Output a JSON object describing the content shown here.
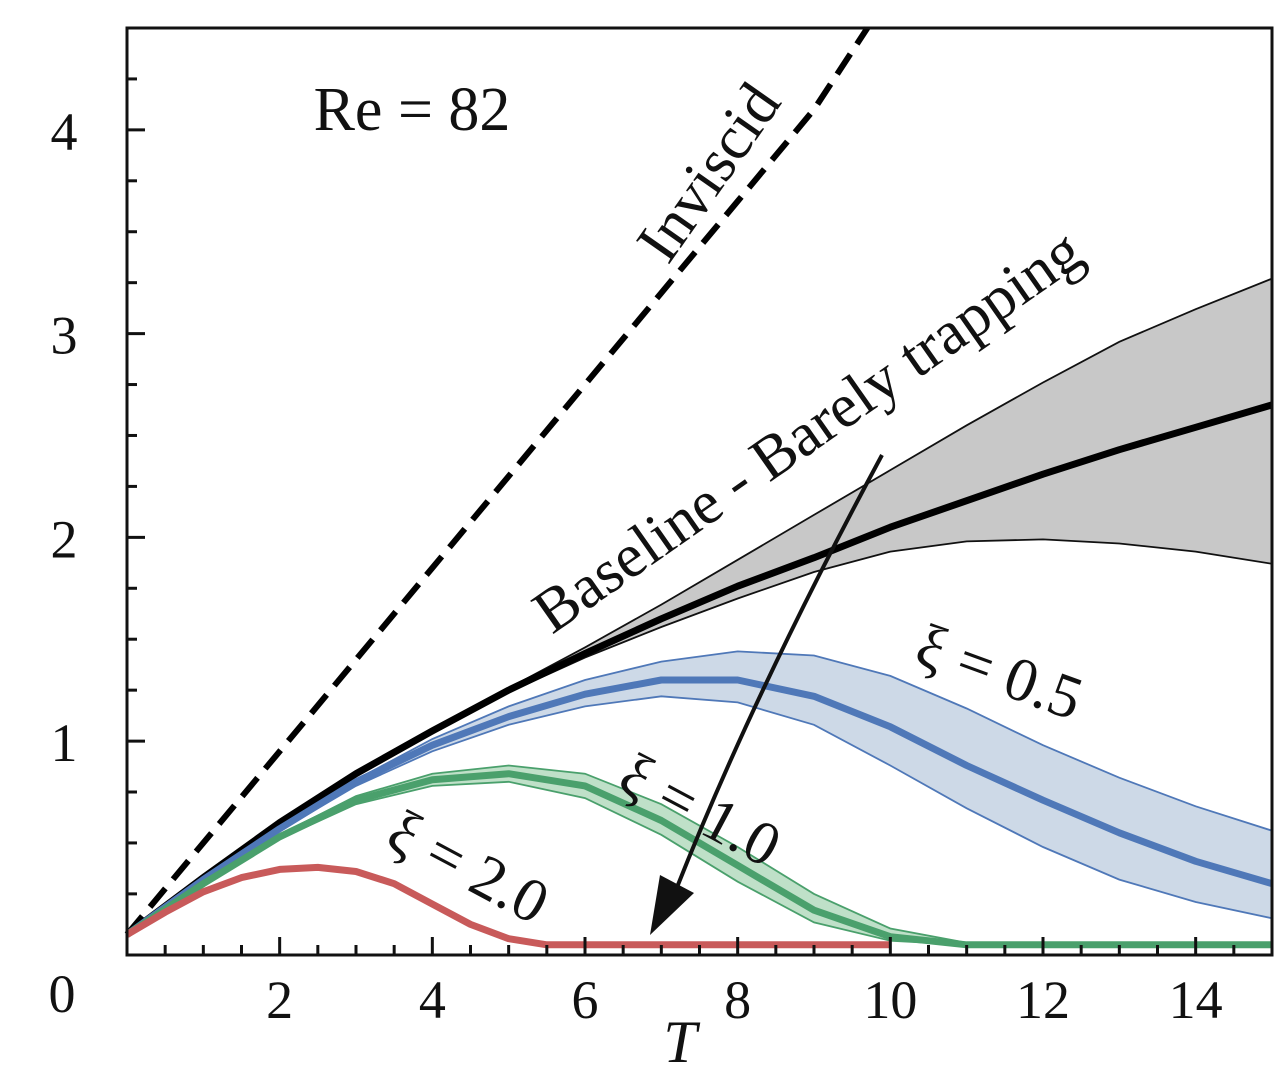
{
  "chart_data": {
    "type": "line",
    "annotation_re": "Re = 82",
    "xlabel": "T",
    "ylabel": "",
    "xlim": [
      0,
      15
    ],
    "ylim": [
      -0.05,
      4.5
    ],
    "x_ticks": [
      2,
      4,
      6,
      8,
      10,
      12,
      14
    ],
    "x_tick_labels": [
      "2",
      "4",
      "6",
      "8",
      "10",
      "12",
      "14"
    ],
    "y_ticks": [
      1,
      2,
      3,
      4
    ],
    "y_tick_labels": [
      "1",
      "2",
      "3",
      "4"
    ],
    "origin_label": "0",
    "grid": false,
    "series": [
      {
        "name": "Inviscid",
        "color": "#000000",
        "style": "dashed",
        "x": [
          0,
          1,
          2,
          3,
          4,
          5,
          6,
          7,
          8,
          9,
          9.7
        ],
        "y": [
          0.05,
          0.5,
          0.95,
          1.4,
          1.85,
          2.3,
          2.75,
          3.2,
          3.65,
          4.1,
          4.5
        ]
      },
      {
        "name": "Baseline - Barely trapping",
        "color": "#000000",
        "band_color": "#c8c8c8",
        "x": [
          0,
          1,
          2,
          3,
          4,
          5,
          6,
          7,
          8,
          9,
          10,
          11,
          12,
          13,
          14,
          15
        ],
        "y": [
          0.05,
          0.33,
          0.6,
          0.84,
          1.05,
          1.25,
          1.43,
          1.6,
          1.76,
          1.9,
          2.05,
          2.18,
          2.31,
          2.43,
          2.54,
          2.65
        ],
        "upper": [
          0.05,
          0.33,
          0.6,
          0.84,
          1.05,
          1.26,
          1.46,
          1.67,
          1.89,
          2.11,
          2.33,
          2.55,
          2.76,
          2.96,
          3.12,
          3.27
        ],
        "lower": [
          0.05,
          0.33,
          0.6,
          0.84,
          1.05,
          1.24,
          1.41,
          1.56,
          1.7,
          1.83,
          1.93,
          1.98,
          1.99,
          1.97,
          1.93,
          1.87
        ]
      },
      {
        "name": "ξ = 0.5",
        "color": "#4f78b8",
        "band_color": "#cdd9e7",
        "x": [
          0,
          1,
          2,
          3,
          4,
          5,
          6,
          7,
          8,
          9,
          10,
          11,
          12,
          13,
          14,
          15
        ],
        "y": [
          0.05,
          0.32,
          0.57,
          0.8,
          0.98,
          1.12,
          1.23,
          1.3,
          1.3,
          1.22,
          1.07,
          0.88,
          0.71,
          0.55,
          0.41,
          0.3
        ],
        "upper": [
          0.05,
          0.32,
          0.58,
          0.81,
          1.01,
          1.17,
          1.3,
          1.39,
          1.44,
          1.42,
          1.32,
          1.16,
          0.98,
          0.82,
          0.68,
          0.56
        ],
        "lower": [
          0.05,
          0.32,
          0.56,
          0.78,
          0.95,
          1.08,
          1.17,
          1.22,
          1.19,
          1.08,
          0.88,
          0.67,
          0.48,
          0.32,
          0.21,
          0.13
        ]
      },
      {
        "name": "ξ = 1.0",
        "color": "#4aa06c",
        "band_color": "#bfe0c8",
        "x": [
          0,
          1,
          2,
          3,
          4,
          5,
          6,
          7,
          8,
          9,
          10,
          11,
          12,
          13,
          14,
          15
        ],
        "y": [
          0.05,
          0.3,
          0.53,
          0.71,
          0.81,
          0.84,
          0.78,
          0.61,
          0.39,
          0.17,
          0.04,
          0.0,
          0.0,
          0.0,
          0.0,
          0.0
        ],
        "upper": [
          0.05,
          0.3,
          0.54,
          0.73,
          0.84,
          0.88,
          0.84,
          0.69,
          0.48,
          0.25,
          0.08,
          0.01,
          0.0,
          0.0,
          0.0,
          0.0
        ],
        "lower": [
          0.05,
          0.3,
          0.52,
          0.69,
          0.78,
          0.8,
          0.72,
          0.54,
          0.31,
          0.11,
          0.02,
          0.0,
          0.0,
          0.0,
          0.0,
          0.0
        ]
      },
      {
        "name": "ξ = 2.0",
        "color": "#c85a5a",
        "x": [
          0,
          0.5,
          1,
          1.5,
          2,
          2.5,
          3,
          3.5,
          4,
          4.5,
          5,
          5.5,
          6,
          7,
          8,
          9,
          10
        ],
        "y": [
          0.05,
          0.16,
          0.26,
          0.33,
          0.37,
          0.38,
          0.36,
          0.3,
          0.2,
          0.1,
          0.03,
          0.0,
          0.0,
          0.0,
          0.0,
          0.0,
          0.0
        ]
      }
    ]
  }
}
